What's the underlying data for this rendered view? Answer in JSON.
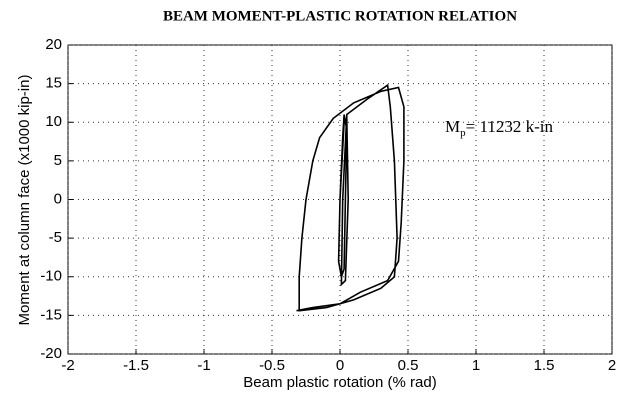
{
  "chart_data": {
    "type": "line",
    "title": "BEAM MOMENT-PLASTIC ROTATION RELATION",
    "x_label": "Beam plastic rotation (% rad)",
    "y_label": "Moment at column face (x1000 kip-in)",
    "annotation": [
      "M",
      "p",
      "= 11232 k-in"
    ],
    "xlim": [
      -2,
      2
    ],
    "ylim": [
      -20,
      20
    ],
    "xticks": [
      -2,
      -1.5,
      -1,
      -0.5,
      0,
      0.5,
      1,
      1.5,
      2
    ],
    "yticks": [
      -20,
      -15,
      -10,
      -5,
      0,
      5,
      10,
      15,
      20
    ],
    "grid": true,
    "series": [
      {
        "color": "#000000",
        "x": [
          0,
          0.02,
          0.03,
          0.05,
          0.04,
          0.03,
          0.01,
          -0.01,
          0,
          0.03,
          0.05,
          0.06,
          0.04,
          0.01,
          0.02,
          0.05,
          0.2,
          0.35,
          0.37,
          0.4,
          0.42,
          0.4,
          0.3,
          0.1,
          -0.1,
          -0.3,
          -0.3,
          -0.28,
          -0.25,
          -0.2,
          -0.15,
          -0.05,
          0.1,
          0.3,
          0.43,
          0.47,
          0.47,
          0.45,
          0.43,
          0.35,
          0.15,
          0,
          -0.2,
          -0.32
        ],
        "y": [
          0,
          8,
          11,
          9,
          0,
          -9,
          -10,
          -8,
          0,
          10,
          10.5,
          0,
          -10.5,
          -11,
          0,
          11,
          13,
          14.8,
          12,
          5,
          -5,
          -10,
          -11.5,
          -13,
          -14,
          -14.4,
          -10,
          -5,
          0,
          5,
          8,
          10.5,
          12.5,
          14,
          14.5,
          12,
          5,
          -3,
          -8,
          -10.5,
          -12,
          -13.5,
          -14,
          -14.4
        ]
      }
    ]
  }
}
